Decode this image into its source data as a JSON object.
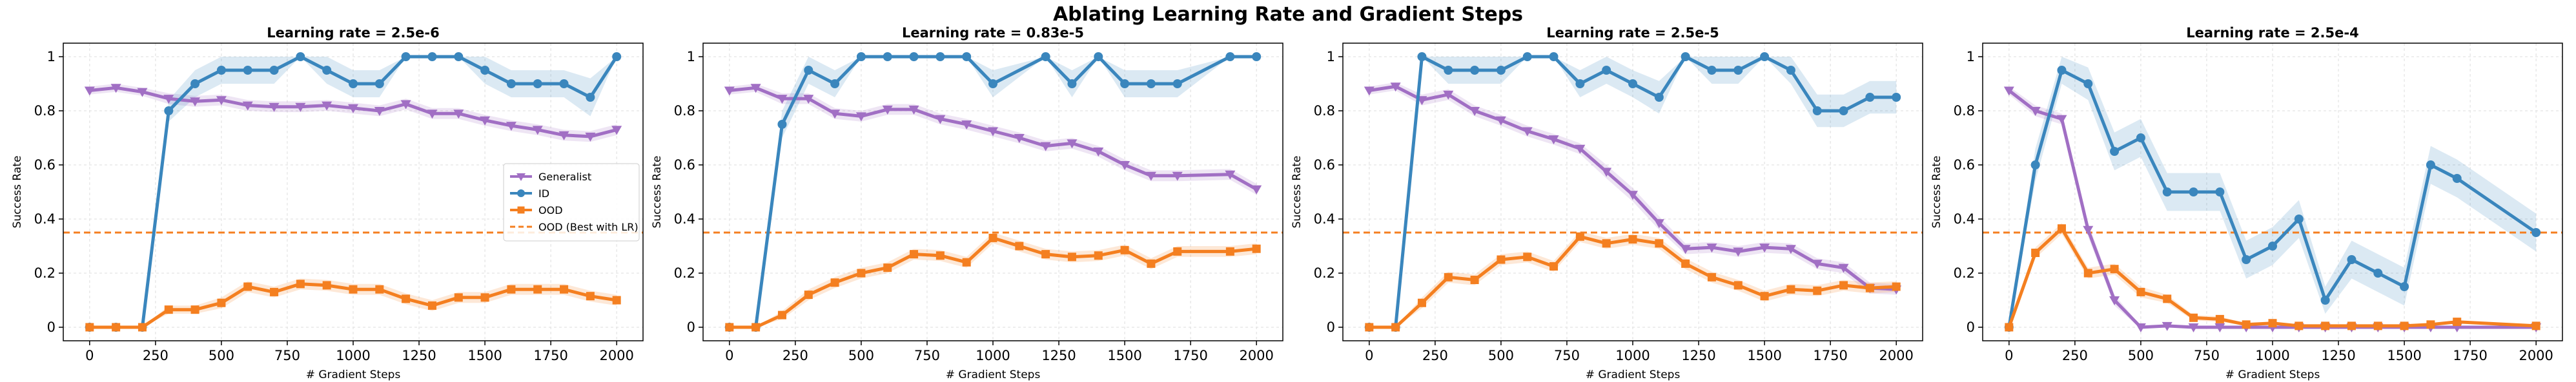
{
  "figure": {
    "suptitle": "Ablating Learning Rate and Gradient Steps",
    "xlabel": "# Gradient Steps",
    "ylabel": "Success Rate",
    "baseline_value": 0.35,
    "colors": {
      "generalist": "#a16fc4",
      "id": "#3a86bd",
      "ood": "#f47f20",
      "baseline": "#f47f20"
    },
    "legend": {
      "placement": "center-right (first panel)",
      "entries": [
        "Generalist",
        "ID",
        "OOD",
        "OOD (Best with LR)"
      ]
    }
  },
  "chart_data": [
    {
      "type": "line",
      "title": "Learning rate = 2.5e-6",
      "xlabel": "# Gradient Steps",
      "ylabel": "Success Rate",
      "xlim": [
        -100,
        2100
      ],
      "ylim": [
        -0.05,
        1.05
      ],
      "xticks": [
        0,
        250,
        500,
        750,
        1000,
        1250,
        1500,
        1750,
        2000
      ],
      "yticks": [
        0.0,
        0.2,
        0.4,
        0.6,
        0.8,
        1.0
      ],
      "grid": true,
      "legend": "center-right",
      "series": [
        {
          "name": "Generalist",
          "marker": "triangle-down",
          "x": [
            0,
            100,
            200,
            300,
            400,
            500,
            600,
            700,
            800,
            900,
            1000,
            1100,
            1200,
            1300,
            1400,
            1500,
            1600,
            1700,
            1800,
            1900,
            2000
          ],
          "y": [
            0.875,
            0.885,
            0.87,
            0.845,
            0.835,
            0.84,
            0.82,
            0.815,
            0.815,
            0.82,
            0.81,
            0.8,
            0.825,
            0.79,
            0.79,
            0.765,
            0.745,
            0.73,
            0.71,
            0.705,
            0.73
          ],
          "band": [
            0.015,
            0.015,
            0.015,
            0.02,
            0.02,
            0.02,
            0.02,
            0.02,
            0.02,
            0.02,
            0.02,
            0.02,
            0.02,
            0.02,
            0.02,
            0.02,
            0.02,
            0.02,
            0.02,
            0.02,
            0.02
          ]
        },
        {
          "name": "ID",
          "marker": "circle",
          "x": [
            0,
            100,
            200,
            300,
            400,
            500,
            600,
            700,
            800,
            900,
            1000,
            1100,
            1200,
            1300,
            1400,
            1500,
            1600,
            1700,
            1800,
            1900,
            2000
          ],
          "y": [
            0.0,
            0.0,
            0.0,
            0.8,
            0.9,
            0.95,
            0.95,
            0.95,
            1.0,
            0.95,
            0.9,
            0.9,
            1.0,
            1.0,
            1.0,
            0.95,
            0.9,
            0.9,
            0.9,
            0.85,
            1.0
          ],
          "band": [
            0,
            0,
            0,
            0.04,
            0.05,
            0.05,
            0.05,
            0.05,
            0.0,
            0.05,
            0.05,
            0.05,
            0.0,
            0.0,
            0.0,
            0.05,
            0.05,
            0.05,
            0.05,
            0.07,
            0.0
          ]
        },
        {
          "name": "OOD",
          "marker": "square",
          "x": [
            0,
            100,
            200,
            300,
            400,
            500,
            600,
            700,
            800,
            900,
            1000,
            1100,
            1200,
            1300,
            1400,
            1500,
            1600,
            1700,
            1800,
            1900,
            2000
          ],
          "y": [
            0.0,
            0.0,
            0.0,
            0.065,
            0.065,
            0.09,
            0.15,
            0.13,
            0.16,
            0.155,
            0.14,
            0.14,
            0.105,
            0.08,
            0.11,
            0.11,
            0.14,
            0.14,
            0.14,
            0.115,
            0.1
          ],
          "band": [
            0,
            0,
            0,
            0.015,
            0.015,
            0.02,
            0.02,
            0.02,
            0.02,
            0.02,
            0.02,
            0.02,
            0.02,
            0.02,
            0.02,
            0.02,
            0.02,
            0.02,
            0.02,
            0.02,
            0.02
          ]
        }
      ]
    },
    {
      "type": "line",
      "title": "Learning rate = 0.83e-5",
      "xlabel": "# Gradient Steps",
      "ylabel": "Success Rate",
      "xlim": [
        -100,
        2100
      ],
      "ylim": [
        -0.05,
        1.05
      ],
      "xticks": [
        0,
        250,
        500,
        750,
        1000,
        1250,
        1500,
        1750,
        2000
      ],
      "yticks": [
        0.0,
        0.2,
        0.4,
        0.6,
        0.8,
        1.0
      ],
      "grid": true,
      "series": [
        {
          "name": "Generalist",
          "marker": "triangle-down",
          "x": [
            0,
            100,
            200,
            300,
            400,
            500,
            600,
            700,
            800,
            900,
            1000,
            1100,
            1200,
            1300,
            1400,
            1500,
            1600,
            1700,
            1900,
            2000
          ],
          "y": [
            0.875,
            0.885,
            0.845,
            0.845,
            0.79,
            0.78,
            0.805,
            0.805,
            0.77,
            0.75,
            0.725,
            0.7,
            0.67,
            0.68,
            0.65,
            0.6,
            0.56,
            0.56,
            0.565,
            0.51
          ],
          "band": [
            0.015,
            0.015,
            0.02,
            0.02,
            0.02,
            0.02,
            0.02,
            0.02,
            0.02,
            0.02,
            0.02,
            0.02,
            0.02,
            0.02,
            0.02,
            0.02,
            0.02,
            0.02,
            0.02,
            0.02
          ]
        },
        {
          "name": "ID",
          "marker": "circle",
          "x": [
            0,
            100,
            200,
            300,
            400,
            500,
            600,
            700,
            800,
            900,
            1000,
            1200,
            1300,
            1400,
            1500,
            1600,
            1700,
            1900,
            2000
          ],
          "y": [
            0.0,
            0.0,
            0.75,
            0.95,
            0.9,
            1.0,
            1.0,
            1.0,
            1.0,
            1.0,
            0.9,
            1.0,
            0.9,
            1.0,
            0.9,
            0.9,
            0.9,
            1.0,
            1.0
          ],
          "band": [
            0,
            0,
            0.05,
            0.05,
            0.05,
            0.0,
            0.0,
            0.0,
            0.0,
            0.0,
            0.05,
            0.0,
            0.05,
            0.0,
            0.05,
            0.05,
            0.05,
            0.0,
            0.0
          ]
        },
        {
          "name": "OOD",
          "marker": "square",
          "x": [
            0,
            100,
            200,
            300,
            400,
            500,
            600,
            700,
            800,
            900,
            1000,
            1100,
            1200,
            1300,
            1400,
            1500,
            1600,
            1700,
            1900,
            2000
          ],
          "y": [
            0.0,
            0.0,
            0.045,
            0.12,
            0.165,
            0.2,
            0.22,
            0.27,
            0.265,
            0.24,
            0.33,
            0.3,
            0.27,
            0.26,
            0.265,
            0.285,
            0.235,
            0.28,
            0.28,
            0.29
          ],
          "band": [
            0,
            0,
            0.015,
            0.02,
            0.02,
            0.02,
            0.02,
            0.02,
            0.02,
            0.02,
            0.02,
            0.02,
            0.02,
            0.02,
            0.02,
            0.02,
            0.02,
            0.02,
            0.02,
            0.02
          ]
        }
      ]
    },
    {
      "type": "line",
      "title": "Learning rate = 2.5e-5",
      "xlabel": "# Gradient Steps",
      "ylabel": "Success Rate",
      "xlim": [
        -100,
        2100
      ],
      "ylim": [
        -0.05,
        1.05
      ],
      "xticks": [
        0,
        250,
        500,
        750,
        1000,
        1250,
        1500,
        1750,
        2000
      ],
      "yticks": [
        0.0,
        0.2,
        0.4,
        0.6,
        0.8,
        1.0
      ],
      "grid": true,
      "series": [
        {
          "name": "Generalist",
          "marker": "triangle-down",
          "x": [
            0,
            100,
            200,
            300,
            400,
            500,
            600,
            700,
            800,
            900,
            1000,
            1100,
            1200,
            1300,
            1400,
            1500,
            1600,
            1700,
            1800,
            1900,
            2000
          ],
          "y": [
            0.875,
            0.89,
            0.84,
            0.86,
            0.8,
            0.765,
            0.725,
            0.695,
            0.66,
            0.575,
            0.49,
            0.385,
            0.29,
            0.295,
            0.28,
            0.295,
            0.29,
            0.235,
            0.22,
            0.145,
            0.14
          ],
          "band": [
            0.015,
            0.015,
            0.02,
            0.02,
            0.02,
            0.02,
            0.02,
            0.02,
            0.02,
            0.025,
            0.025,
            0.025,
            0.02,
            0.02,
            0.02,
            0.02,
            0.02,
            0.02,
            0.02,
            0.02,
            0.02
          ]
        },
        {
          "name": "ID",
          "marker": "circle",
          "x": [
            0,
            100,
            200,
            300,
            400,
            500,
            600,
            700,
            800,
            900,
            1000,
            1100,
            1200,
            1300,
            1400,
            1500,
            1600,
            1700,
            1800,
            1900,
            2000
          ],
          "y": [
            0.0,
            0.0,
            1.0,
            0.95,
            0.95,
            0.95,
            1.0,
            1.0,
            0.9,
            0.95,
            0.9,
            0.85,
            1.0,
            0.95,
            0.95,
            1.0,
            0.95,
            0.8,
            0.8,
            0.85,
            0.85
          ],
          "band": [
            0,
            0,
            0.0,
            0.05,
            0.05,
            0.05,
            0.0,
            0.0,
            0.05,
            0.05,
            0.05,
            0.06,
            0.0,
            0.05,
            0.05,
            0.0,
            0.05,
            0.06,
            0.06,
            0.06,
            0.06
          ]
        },
        {
          "name": "OOD",
          "marker": "square",
          "x": [
            0,
            100,
            200,
            300,
            400,
            500,
            600,
            700,
            800,
            900,
            1000,
            1100,
            1200,
            1300,
            1400,
            1500,
            1600,
            1700,
            1800,
            1900,
            2000
          ],
          "y": [
            0.0,
            0.0,
            0.09,
            0.185,
            0.175,
            0.25,
            0.26,
            0.225,
            0.335,
            0.31,
            0.325,
            0.31,
            0.235,
            0.185,
            0.155,
            0.115,
            0.14,
            0.135,
            0.155,
            0.145,
            0.15
          ],
          "band": [
            0,
            0,
            0.02,
            0.02,
            0.02,
            0.02,
            0.02,
            0.02,
            0.02,
            0.02,
            0.02,
            0.02,
            0.02,
            0.02,
            0.02,
            0.02,
            0.02,
            0.02,
            0.02,
            0.02,
            0.02
          ]
        }
      ]
    },
    {
      "type": "line",
      "title": "Learning rate = 2.5e-4",
      "xlabel": "# Gradient Steps",
      "ylabel": "Success Rate",
      "xlim": [
        -100,
        2100
      ],
      "ylim": [
        -0.05,
        1.05
      ],
      "xticks": [
        0,
        250,
        500,
        750,
        1000,
        1250,
        1500,
        1750,
        2000
      ],
      "yticks": [
        0.0,
        0.2,
        0.4,
        0.6,
        0.8,
        1.0
      ],
      "grid": true,
      "series": [
        {
          "name": "Generalist",
          "marker": "triangle-down",
          "x": [
            0,
            100,
            200,
            300,
            400,
            500,
            600,
            700,
            800,
            900,
            1000,
            1100,
            1200,
            1300,
            1400,
            1500,
            1600,
            1700,
            2000
          ],
          "y": [
            0.875,
            0.8,
            0.77,
            0.36,
            0.1,
            0.0,
            0.005,
            0.0,
            0.0,
            0.0,
            0.0,
            0.0,
            0.0,
            0.0,
            0.0,
            0.0,
            0.0,
            0.0,
            0.0
          ],
          "band": [
            0.015,
            0.02,
            0.02,
            0.025,
            0.02,
            0.005,
            0.005,
            0.005,
            0.005,
            0.005,
            0.005,
            0.005,
            0.005,
            0.005,
            0.005,
            0.005,
            0.005,
            0.005,
            0.005
          ]
        },
        {
          "name": "ID",
          "marker": "circle",
          "x": [
            0,
            100,
            200,
            300,
            400,
            500,
            600,
            700,
            800,
            900,
            1000,
            1100,
            1200,
            1300,
            1400,
            1500,
            1600,
            1700,
            2000
          ],
          "y": [
            0.0,
            0.6,
            0.95,
            0.9,
            0.65,
            0.7,
            0.5,
            0.5,
            0.5,
            0.25,
            0.3,
            0.4,
            0.1,
            0.25,
            0.2,
            0.15,
            0.6,
            0.55,
            0.35
          ],
          "band": [
            0,
            0.06,
            0.05,
            0.06,
            0.07,
            0.07,
            0.07,
            0.07,
            0.07,
            0.07,
            0.07,
            0.07,
            0.05,
            0.07,
            0.07,
            0.07,
            0.07,
            0.07,
            0.07
          ]
        },
        {
          "name": "OOD",
          "marker": "square",
          "x": [
            0,
            100,
            200,
            300,
            400,
            500,
            600,
            700,
            800,
            900,
            1000,
            1100,
            1200,
            1300,
            1400,
            1500,
            1600,
            1700,
            2000
          ],
          "y": [
            0.0,
            0.275,
            0.365,
            0.2,
            0.215,
            0.13,
            0.105,
            0.035,
            0.03,
            0.01,
            0.015,
            0.005,
            0.005,
            0.005,
            0.005,
            0.005,
            0.01,
            0.02,
            0.005
          ],
          "band": [
            0,
            0.02,
            0.02,
            0.02,
            0.02,
            0.02,
            0.015,
            0.01,
            0.01,
            0.005,
            0.005,
            0.005,
            0.005,
            0.005,
            0.005,
            0.005,
            0.005,
            0.005,
            0.005
          ]
        }
      ]
    }
  ]
}
